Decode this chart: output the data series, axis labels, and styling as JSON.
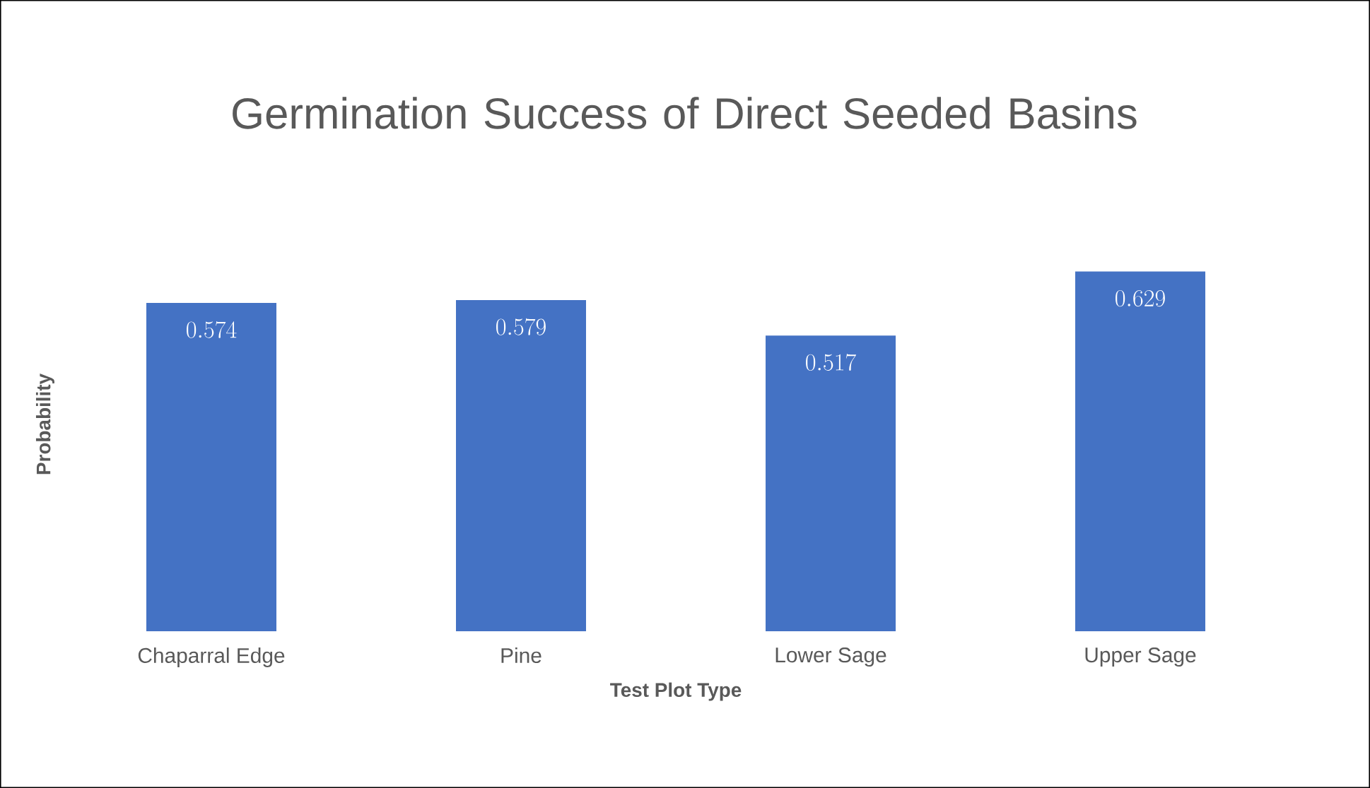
{
  "chart_data": {
    "type": "bar",
    "title": "Germination Success of Direct Seeded Basins",
    "xlabel": "Test Plot Type",
    "ylabel": "Probability",
    "categories": [
      "Chaparral Edge",
      "Pine",
      "Lower Sage",
      "Upper Sage"
    ],
    "values": [
      0.574,
      0.579,
      0.517,
      0.629
    ],
    "color": "#4472c4",
    "data_labels": true,
    "tick_labels": "x"
  }
}
